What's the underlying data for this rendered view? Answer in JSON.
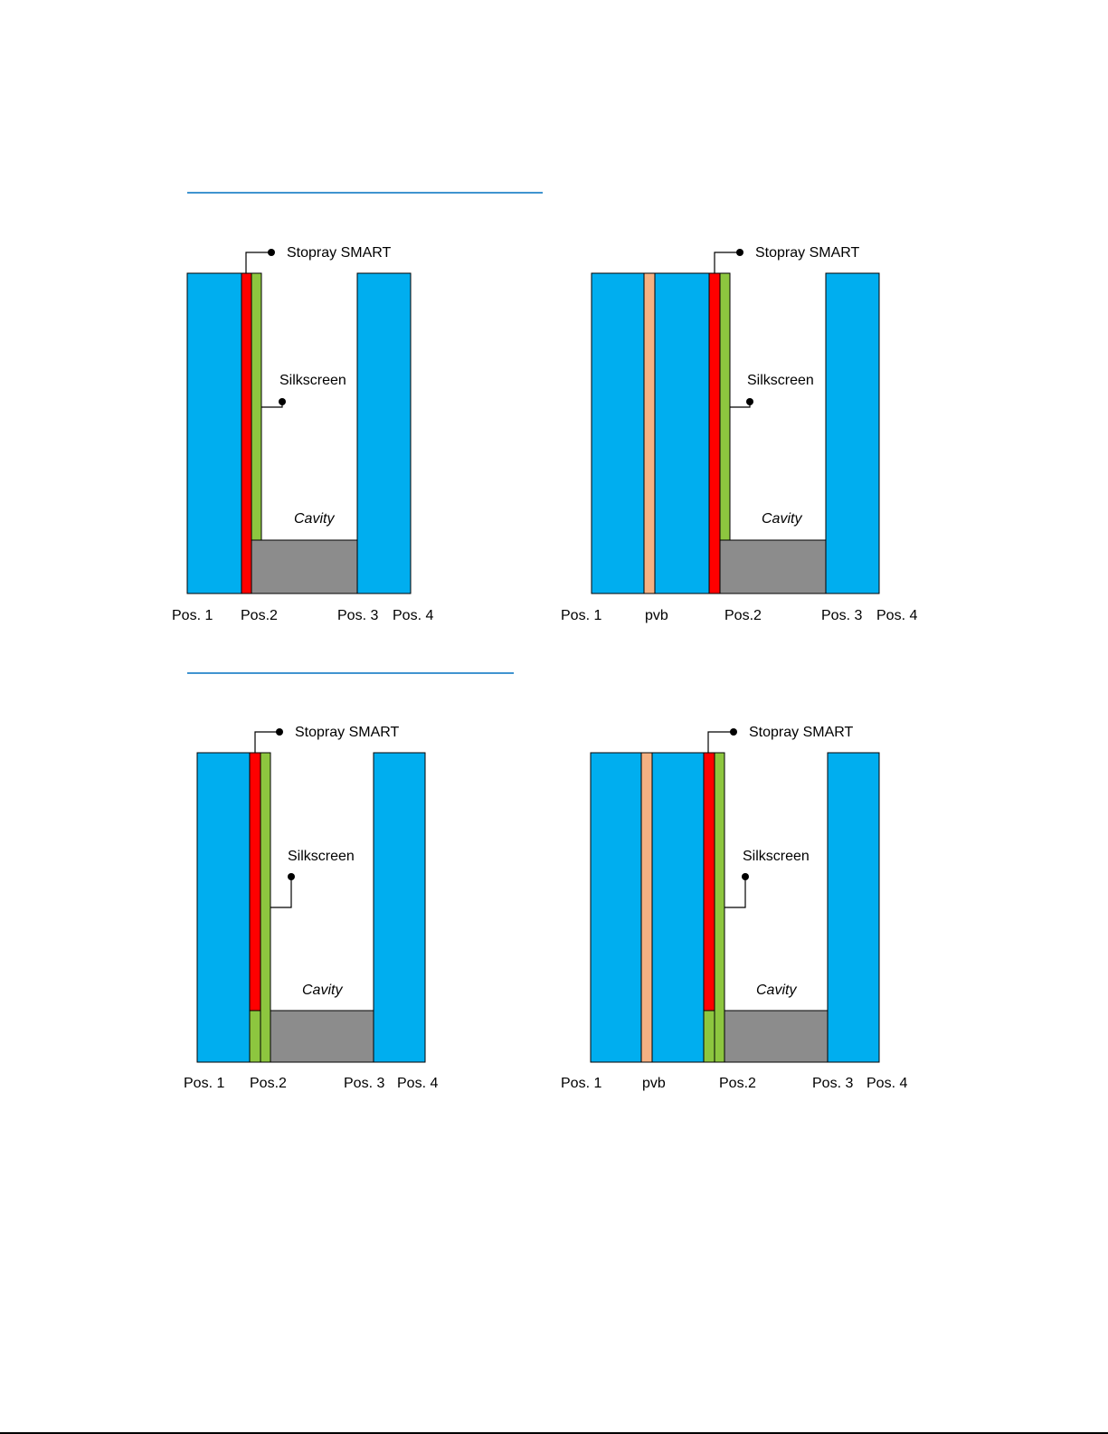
{
  "colors": {
    "glass": "#00AEEF",
    "coating": "#FF0000",
    "silkscreen": "#8DC63F",
    "spacer": "#8C8C8C",
    "pvb": "#F4B183",
    "rule": "#0070C0",
    "outline": "#000000"
  },
  "labels": {
    "coating": "Stopray SMART",
    "silkscreen": "Silkscreen",
    "cavity": "Cavity",
    "pos1": "Pos. 1",
    "pos2": "Pos.2",
    "pos3": "Pos. 3",
    "pos4": "Pos. 4",
    "pvb": "pvb"
  },
  "diagrams": [
    {
      "id": "top-left",
      "laminated": false,
      "silkscreen_at_bottom": false
    },
    {
      "id": "top-right",
      "laminated": true,
      "silkscreen_at_bottom": false
    },
    {
      "id": "bottom-left",
      "laminated": false,
      "silkscreen_at_bottom": true
    },
    {
      "id": "bottom-right",
      "laminated": true,
      "silkscreen_at_bottom": true
    }
  ]
}
